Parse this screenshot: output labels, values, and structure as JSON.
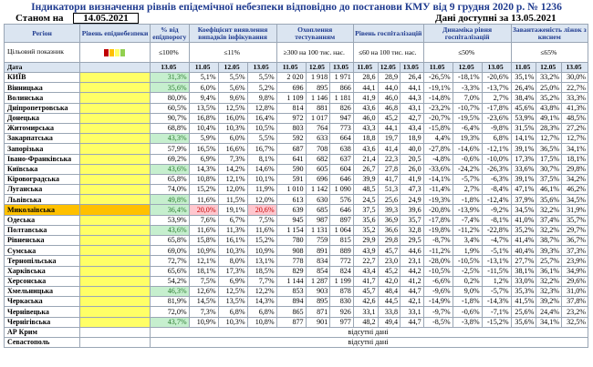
{
  "title": "Індикатори визначення рівнів епідемічної небезпеки відповідно до постанови КМУ від 9 грудня 2020 р. № 1236",
  "status_label": "Станом на",
  "status_date": "14.05.2021",
  "data_available": "Дані доступні за 13.05.2021",
  "headers": {
    "region": "Регіон",
    "level": "Рівень епіднебезпеки",
    "fund": "% від епідпорогу",
    "coef": "Коефіцієнт виявлення випадків інфікування",
    "testing": "Охоплення тестуванням",
    "hosp": "Рівень госпіталізацій",
    "dyn": "Динаміка рівня госпіталізацій",
    "beds": "Завантаженість ліжок з киснем"
  },
  "target_row": {
    "label": "Цільовий показник",
    "fund": "≤100%",
    "coef": "≤11%",
    "testing": "≥300 на 100 тис. нас.",
    "hosp": "≤60 на 100 тис. нас.",
    "dyn": "≤50%",
    "beds": "≤65%"
  },
  "date_row": {
    "label": "Дата",
    "fund": "13.05",
    "dates": [
      "11.05",
      "12.05",
      "13.05"
    ]
  },
  "regions": [
    {
      "name": "КИЇВ",
      "lvl": "y",
      "fund": "31,3%",
      "fund_c": "g",
      "coef": [
        "5,1%",
        "5,5%",
        "5,5%"
      ],
      "test": [
        "2 020",
        "1 918",
        "1 971"
      ],
      "hosp": [
        "28,6",
        "28,9",
        "26,4"
      ],
      "dyn": [
        "-26,5%",
        "-18,1%",
        "-20,6%"
      ],
      "beds": [
        "35,1%",
        "33,2%",
        "30,0%"
      ]
    },
    {
      "name": "Вінницька",
      "lvl": "y",
      "fund": "35,6%",
      "fund_c": "g",
      "coef": [
        "6,0%",
        "5,6%",
        "5,2%"
      ],
      "test": [
        "696",
        "895",
        "866"
      ],
      "hosp": [
        "44,1",
        "44,0",
        "44,1"
      ],
      "dyn": [
        "-19,1%",
        "-3,3%",
        "-13,7%"
      ],
      "beds": [
        "26,4%",
        "25,0%",
        "22,7%"
      ]
    },
    {
      "name": "Волинська",
      "lvl": "y",
      "fund": "80,0%",
      "coef": [
        "9,4%",
        "9,6%",
        "9,8%"
      ],
      "test": [
        "1 109",
        "1 146",
        "1 181"
      ],
      "hosp": [
        "41,9",
        "46,0",
        "44,3"
      ],
      "dyn": [
        "-14,8%",
        "7,0%",
        "2,7%"
      ],
      "beds": [
        "38,4%",
        "35,2%",
        "33,3%"
      ]
    },
    {
      "name": "Дніпропетровська",
      "lvl": "y",
      "fund": "60,5%",
      "coef": [
        "13,5%",
        "12,5%",
        "12,8%"
      ],
      "test": [
        "814",
        "881",
        "826"
      ],
      "hosp": [
        "43,6",
        "46,8",
        "43,1"
      ],
      "dyn": [
        "-23,2%",
        "-10,7%",
        "-17,8%"
      ],
      "beds": [
        "45,6%",
        "43,8%",
        "41,3%"
      ]
    },
    {
      "name": "Донецька",
      "lvl": "y",
      "fund": "90,7%",
      "coef": [
        "16,8%",
        "16,0%",
        "16,4%"
      ],
      "test": [
        "972",
        "1 017",
        "947"
      ],
      "hosp": [
        "46,0",
        "45,2",
        "42,7"
      ],
      "dyn": [
        "-20,7%",
        "-19,5%",
        "-23,6%"
      ],
      "beds": [
        "53,9%",
        "49,1%",
        "48,5%"
      ]
    },
    {
      "name": "Житомирська",
      "lvl": "y",
      "fund": "68,8%",
      "coef": [
        "10,4%",
        "10,3%",
        "10,5%"
      ],
      "test": [
        "803",
        "764",
        "773"
      ],
      "hosp": [
        "43,3",
        "44,1",
        "43,4"
      ],
      "dyn": [
        "-15,8%",
        "-6,4%",
        "-9,8%"
      ],
      "beds": [
        "31,5%",
        "28,3%",
        "27,2%"
      ]
    },
    {
      "name": "Закарпатська",
      "lvl": "y",
      "fund": "43,3%",
      "fund_c": "g",
      "coef": [
        "5,9%",
        "6,0%",
        "5,5%"
      ],
      "test": [
        "592",
        "633",
        "664"
      ],
      "hosp": [
        "18,8",
        "19,7",
        "18,9"
      ],
      "dyn": [
        "4,4%",
        "19,3%",
        "6,8%"
      ],
      "beds": [
        "14,1%",
        "12,7%",
        "12,7%"
      ]
    },
    {
      "name": "Запорізька",
      "lvl": "y",
      "fund": "57,9%",
      "coef": [
        "16,5%",
        "16,6%",
        "16,7%"
      ],
      "test": [
        "687",
        "708",
        "638"
      ],
      "hosp": [
        "43,6",
        "41,4",
        "40,0"
      ],
      "dyn": [
        "-27,8%",
        "-14,6%",
        "-12,1%"
      ],
      "beds": [
        "39,1%",
        "36,5%",
        "34,1%"
      ]
    },
    {
      "name": "Івано-Франківська",
      "lvl": "y",
      "fund": "69,2%",
      "coef": [
        "6,9%",
        "7,3%",
        "8,1%"
      ],
      "test": [
        "641",
        "682",
        "637"
      ],
      "hosp": [
        "21,4",
        "22,3",
        "20,5"
      ],
      "dyn": [
        "-4,8%",
        "-0,6%",
        "-10,0%"
      ],
      "beds": [
        "17,3%",
        "17,5%",
        "18,1%"
      ]
    },
    {
      "name": "Київська",
      "lvl": "y",
      "fund": "43,6%",
      "fund_c": "g",
      "coef": [
        "14,3%",
        "14,2%",
        "14,6%"
      ],
      "test": [
        "590",
        "605",
        "604"
      ],
      "hosp": [
        "26,7",
        "27,8",
        "26,0"
      ],
      "dyn": [
        "-33,6%",
        "-24,2%",
        "-26,3%"
      ],
      "beds": [
        "33,6%",
        "30,7%",
        "29,8%"
      ]
    },
    {
      "name": "Кіровоградська",
      "lvl": "y",
      "fund": "65,8%",
      "coef": [
        "10,8%",
        "12,1%",
        "10,1%"
      ],
      "test": [
        "591",
        "696",
        "646"
      ],
      "hosp": [
        "39,9",
        "41,7",
        "41,9"
      ],
      "dyn": [
        "-14,1%",
        "-5,7%",
        "-6,3%"
      ],
      "beds": [
        "39,1%",
        "37,5%",
        "34,2%"
      ]
    },
    {
      "name": "Луганська",
      "lvl": "y",
      "fund": "74,0%",
      "coef": [
        "15,2%",
        "12,0%",
        "11,9%"
      ],
      "test": [
        "1 010",
        "1 142",
        "1 090"
      ],
      "hosp": [
        "48,5",
        "51,3",
        "47,3"
      ],
      "dyn": [
        "-11,4%",
        "2,7%",
        "-8,4%"
      ],
      "beds": [
        "47,1%",
        "46,1%",
        "46,2%"
      ]
    },
    {
      "name": "Львівська",
      "lvl": "y",
      "fund": "49,8%",
      "fund_c": "g",
      "coef": [
        "11,6%",
        "11,5%",
        "12,0%"
      ],
      "test": [
        "613",
        "630",
        "576"
      ],
      "hosp": [
        "24,5",
        "25,6",
        "24,9"
      ],
      "dyn": [
        "-19,3%",
        "-1,8%",
        "-12,4%"
      ],
      "beds": [
        "37,9%",
        "35,6%",
        "34,5%"
      ]
    },
    {
      "name": "Миколаївська",
      "lvl": "o",
      "row": "orange",
      "fund": "36,4%",
      "fund_c": "g",
      "coef": [
        "20,0%",
        "19,1%",
        "20,6%"
      ],
      "coef_c": [
        "r",
        "",
        "r"
      ],
      "test": [
        "639",
        "685",
        "646"
      ],
      "hosp": [
        "37,5",
        "39,3",
        "39,6"
      ],
      "dyn": [
        "-20,8%",
        "-13,9%",
        "-9,2%"
      ],
      "beds": [
        "34,5%",
        "32,2%",
        "31,9%"
      ]
    },
    {
      "name": "Одеська",
      "lvl": "y",
      "fund": "53,9%",
      "coef": [
        "7,6%",
        "6,7%",
        "7,5%"
      ],
      "test": [
        "945",
        "987",
        "897"
      ],
      "hosp": [
        "35,6",
        "36,9",
        "35,7"
      ],
      "dyn": [
        "-17,8%",
        "-7,4%",
        "-8,1%"
      ],
      "beds": [
        "41,0%",
        "37,4%",
        "35,7%"
      ]
    },
    {
      "name": "Полтавська",
      "lvl": "y",
      "fund": "43,6%",
      "fund_c": "g",
      "coef": [
        "11,6%",
        "11,3%",
        "11,6%"
      ],
      "test": [
        "1 154",
        "1 131",
        "1 064"
      ],
      "hosp": [
        "35,2",
        "36,6",
        "32,8"
      ],
      "dyn": [
        "-19,8%",
        "-11,2%",
        "-22,8%"
      ],
      "beds": [
        "35,2%",
        "32,2%",
        "29,7%"
      ]
    },
    {
      "name": "Рівненська",
      "lvl": "y",
      "fund": "65,8%",
      "coef": [
        "15,8%",
        "16,1%",
        "15,2%"
      ],
      "test": [
        "780",
        "759",
        "815"
      ],
      "hosp": [
        "29,9",
        "29,8",
        "29,5"
      ],
      "dyn": [
        "-8,7%",
        "3,4%",
        "-4,7%"
      ],
      "beds": [
        "41,4%",
        "38,7%",
        "36,7%"
      ]
    },
    {
      "name": "Сумська",
      "lvl": "y",
      "fund": "69,0%",
      "coef": [
        "10,9%",
        "10,3%",
        "10,9%"
      ],
      "test": [
        "908",
        "891",
        "889"
      ],
      "hosp": [
        "43,9",
        "45,7",
        "44,6"
      ],
      "dyn": [
        "-11,2%",
        "1,9%",
        "-5,1%"
      ],
      "beds": [
        "40,4%",
        "39,3%",
        "37,3%"
      ]
    },
    {
      "name": "Тернопільська",
      "lvl": "y",
      "fund": "72,7%",
      "coef": [
        "12,1%",
        "8,0%",
        "13,1%"
      ],
      "test": [
        "778",
        "834",
        "772"
      ],
      "hosp": [
        "22,7",
        "23,0",
        "23,1"
      ],
      "dyn": [
        "-28,0%",
        "-10,5%",
        "-13,1%"
      ],
      "beds": [
        "27,7%",
        "25,7%",
        "23,9%"
      ]
    },
    {
      "name": "Харківська",
      "lvl": "y",
      "fund": "65,6%",
      "coef": [
        "18,1%",
        "17,3%",
        "18,5%"
      ],
      "test": [
        "829",
        "854",
        "824"
      ],
      "hosp": [
        "43,4",
        "45,2",
        "44,2"
      ],
      "dyn": [
        "-10,5%",
        "-2,5%",
        "-11,5%"
      ],
      "beds": [
        "38,1%",
        "36,1%",
        "34,9%"
      ]
    },
    {
      "name": "Херсонська",
      "lvl": "y",
      "fund": "54,2%",
      "coef": [
        "7,5%",
        "6,9%",
        "7,7%"
      ],
      "test": [
        "1 144",
        "1 287",
        "1 199"
      ],
      "hosp": [
        "41,7",
        "42,0",
        "41,2"
      ],
      "dyn": [
        "-6,6%",
        "0,2%",
        "1,2%"
      ],
      "beds": [
        "33,0%",
        "32,2%",
        "29,6%"
      ]
    },
    {
      "name": "Хмельницька",
      "lvl": "y",
      "fund": "46,3%",
      "fund_c": "g",
      "coef": [
        "12,6%",
        "12,5%",
        "12,2%"
      ],
      "test": [
        "853",
        "903",
        "878"
      ],
      "hosp": [
        "45,7",
        "48,4",
        "44,7"
      ],
      "dyn": [
        "-9,6%",
        "9,0%",
        "-5,7%"
      ],
      "beds": [
        "35,3%",
        "32,3%",
        "31,0%"
      ]
    },
    {
      "name": "Черкаська",
      "lvl": "y",
      "fund": "81,9%",
      "coef": [
        "14,5%",
        "13,5%",
        "14,3%"
      ],
      "test": [
        "894",
        "895",
        "830"
      ],
      "hosp": [
        "42,6",
        "44,5",
        "42,1"
      ],
      "dyn": [
        "-14,9%",
        "-1,8%",
        "-14,3%"
      ],
      "beds": [
        "41,5%",
        "39,2%",
        "37,8%"
      ]
    },
    {
      "name": "Чернівецька",
      "lvl": "y",
      "fund": "72,0%",
      "coef": [
        "7,3%",
        "6,8%",
        "6,8%"
      ],
      "test": [
        "865",
        "871",
        "926"
      ],
      "hosp": [
        "33,1",
        "33,8",
        "33,1"
      ],
      "dyn": [
        "-9,7%",
        "-0,6%",
        "-7,1%"
      ],
      "beds": [
        "25,6%",
        "24,4%",
        "23,2%"
      ]
    },
    {
      "name": "Чернігівська",
      "lvl": "y",
      "fund": "43,7%",
      "fund_c": "g",
      "coef": [
        "10,9%",
        "10,3%",
        "10,8%"
      ],
      "test": [
        "877",
        "901",
        "977"
      ],
      "hosp": [
        "48,2",
        "49,4",
        "44,7"
      ],
      "dyn": [
        "-8,5%",
        "-3,8%",
        "-15,2%"
      ],
      "beds": [
        "35,6%",
        "34,1%",
        "32,5%"
      ]
    }
  ],
  "missing": [
    {
      "name": "АР Крим",
      "note": "відсутні дані"
    },
    {
      "name": "Севастополь",
      "note": "відсутні дані"
    }
  ],
  "colors": {
    "title": "#1f3b8f",
    "level_yellow": "#ffff66",
    "level_orange": "#ffc000",
    "good": "#c6efce",
    "bad": "#ffc7ce",
    "header_bg": "#dbe5f1"
  },
  "legend_colors": [
    "#c00000",
    "#ffc000",
    "#ffff66",
    "#92d050"
  ]
}
